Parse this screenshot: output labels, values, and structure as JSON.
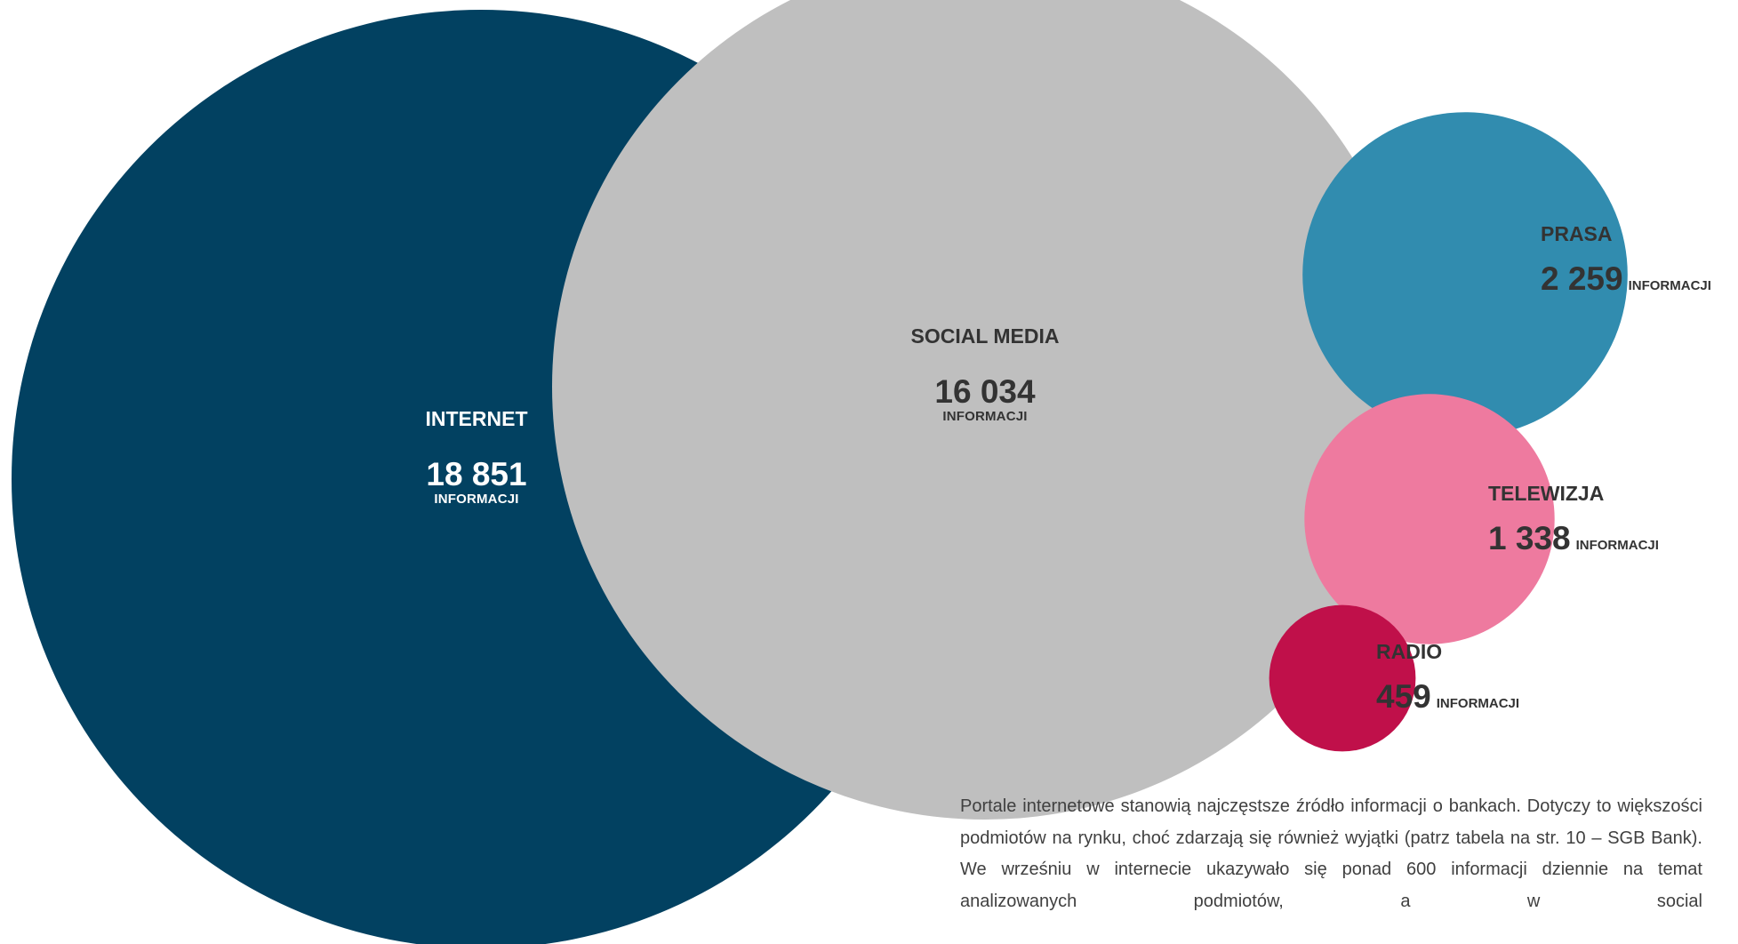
{
  "chart_data": {
    "type": "bubble",
    "unit": "INFORMACJI",
    "series": [
      {
        "name": "INTERNET",
        "value": 18851,
        "value_label": "18 851",
        "color": "#024161"
      },
      {
        "name": "SOCIAL MEDIA",
        "value": 16034,
        "value_label": "16 034",
        "color": "#bfbfbf"
      },
      {
        "name": "PRASA",
        "value": 2259,
        "value_label": "2 259",
        "color": "#318caf"
      },
      {
        "name": "TELEWIZJA",
        "value": 1338,
        "value_label": "1 338",
        "color": "#ee7a9f"
      },
      {
        "name": "RADIO",
        "value": 459,
        "value_label": "459",
        "color": "#c0104a"
      }
    ]
  },
  "note": {
    "text": "Portale internetowe stanowią najczęstsze źródło informacji o bankach. Dotyczy to większości podmiotów na rynku, choć zdarzają się również wyjątki (patrz tabela na str. 10 – SGB Bank).  We wrześniu w internecie ukazywało się ponad 600 informacji dziennie na temat analizowanych podmiotów, a w social"
  }
}
